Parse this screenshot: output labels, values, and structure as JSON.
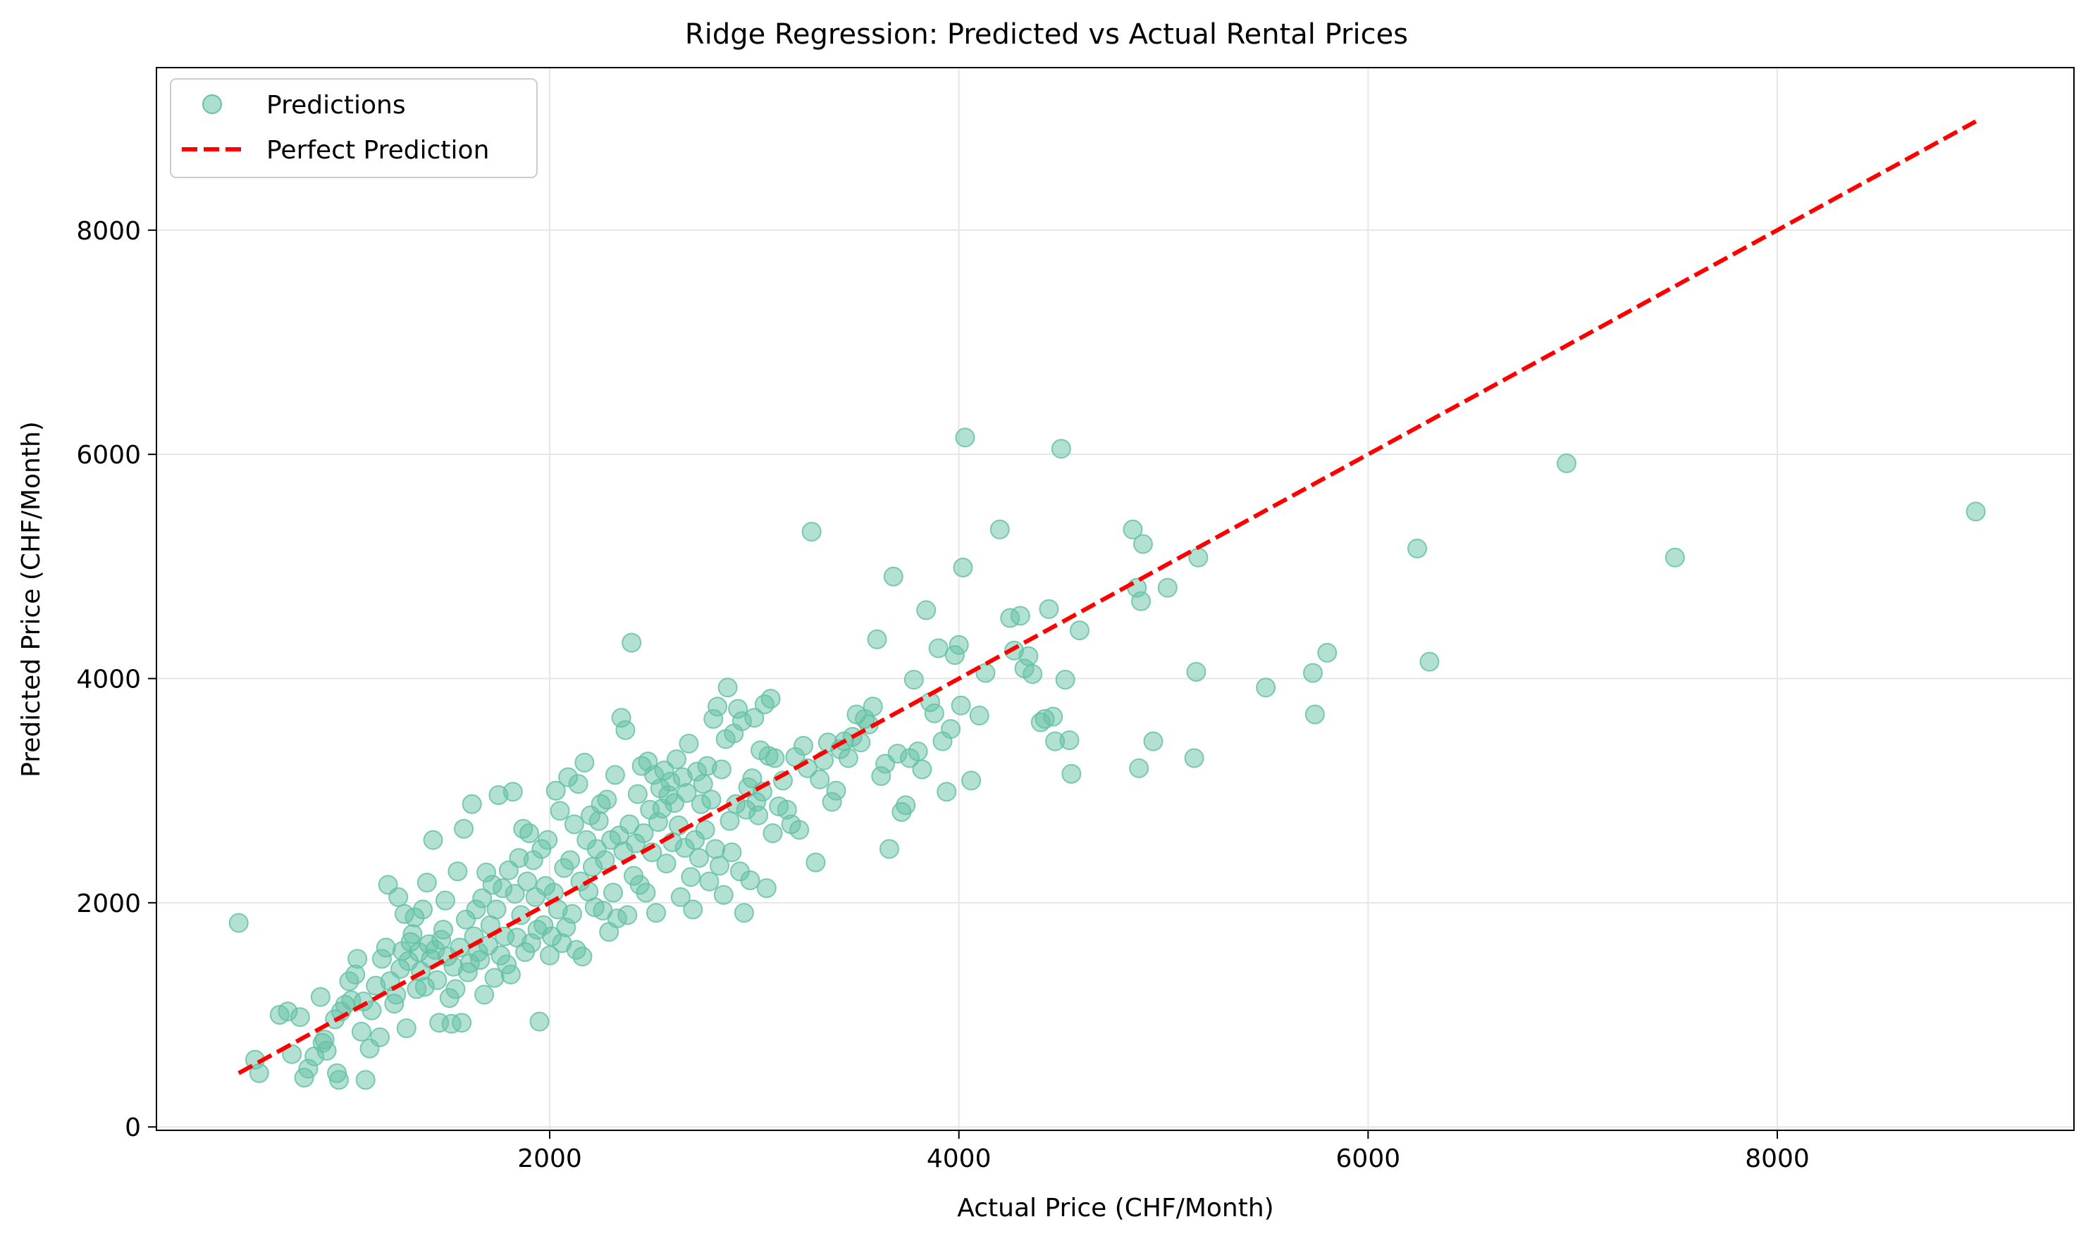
{
  "chart_data": {
    "type": "scatter",
    "title": "Ridge Regression: Predicted vs Actual Rental Prices",
    "xlabel": "Actual Price (CHF/Month)",
    "ylabel": "Predicted Price (CHF/Month)",
    "xlim": [
      78,
      9450
    ],
    "ylim": [
      -30,
      9450
    ],
    "x_ticks": [
      2000,
      4000,
      6000,
      8000
    ],
    "y_ticks": [
      0,
      2000,
      4000,
      6000,
      8000
    ],
    "grid": true,
    "legend_position": "top-left",
    "colors": {
      "points": "#66c2a5",
      "reference_line": "#ff0000",
      "grid": "#e6e6e6",
      "axes": "#000000"
    },
    "series": [
      {
        "name": "Predictions",
        "kind": "scatter",
        "points": [
          [
            480,
            1820
          ],
          [
            560,
            600
          ],
          [
            580,
            480
          ],
          [
            680,
            1000
          ],
          [
            720,
            1030
          ],
          [
            740,
            650
          ],
          [
            780,
            980
          ],
          [
            800,
            440
          ],
          [
            820,
            520
          ],
          [
            850,
            630
          ],
          [
            880,
            1160
          ],
          [
            890,
            750
          ],
          [
            900,
            780
          ],
          [
            910,
            680
          ],
          [
            950,
            960
          ],
          [
            960,
            480
          ],
          [
            970,
            420
          ],
          [
            980,
            1030
          ],
          [
            1000,
            1090
          ],
          [
            1020,
            1300
          ],
          [
            1030,
            1130
          ],
          [
            1050,
            1360
          ],
          [
            1060,
            1500
          ],
          [
            1080,
            850
          ],
          [
            1090,
            1120
          ],
          [
            1100,
            420
          ],
          [
            1120,
            700
          ],
          [
            1130,
            1040
          ],
          [
            1150,
            1260
          ],
          [
            1170,
            800
          ],
          [
            1180,
            1500
          ],
          [
            1200,
            1600
          ],
          [
            1210,
            2160
          ],
          [
            1220,
            1300
          ],
          [
            1240,
            1100
          ],
          [
            1250,
            1180
          ],
          [
            1260,
            2050
          ],
          [
            1270,
            1410
          ],
          [
            1280,
            1570
          ],
          [
            1290,
            1900
          ],
          [
            1300,
            880
          ],
          [
            1310,
            1480
          ],
          [
            1320,
            1650
          ],
          [
            1330,
            1720
          ],
          [
            1340,
            1870
          ],
          [
            1350,
            1230
          ],
          [
            1360,
            1560
          ],
          [
            1370,
            1390
          ],
          [
            1380,
            1940
          ],
          [
            1390,
            1250
          ],
          [
            1400,
            2180
          ],
          [
            1410,
            1630
          ],
          [
            1420,
            1500
          ],
          [
            1430,
            2560
          ],
          [
            1440,
            1580
          ],
          [
            1450,
            1310
          ],
          [
            1460,
            930
          ],
          [
            1470,
            1670
          ],
          [
            1480,
            1760
          ],
          [
            1490,
            2020
          ],
          [
            1500,
            1520
          ],
          [
            1510,
            1150
          ],
          [
            1520,
            920
          ],
          [
            1530,
            1430
          ],
          [
            1540,
            1230
          ],
          [
            1550,
            2280
          ],
          [
            1560,
            1600
          ],
          [
            1570,
            930
          ],
          [
            1580,
            2660
          ],
          [
            1590,
            1850
          ],
          [
            1600,
            1380
          ],
          [
            1610,
            1460
          ],
          [
            1620,
            2880
          ],
          [
            1630,
            1700
          ],
          [
            1640,
            1940
          ],
          [
            1650,
            1560
          ],
          [
            1660,
            1490
          ],
          [
            1670,
            2040
          ],
          [
            1680,
            1180
          ],
          [
            1690,
            2270
          ],
          [
            1700,
            1620
          ],
          [
            1710,
            1800
          ],
          [
            1720,
            2160
          ],
          [
            1730,
            1330
          ],
          [
            1740,
            1940
          ],
          [
            1750,
            2960
          ],
          [
            1760,
            1530
          ],
          [
            1770,
            2130
          ],
          [
            1780,
            1700
          ],
          [
            1790,
            1450
          ],
          [
            1800,
            2290
          ],
          [
            1810,
            1360
          ],
          [
            1820,
            2990
          ],
          [
            1830,
            2080
          ],
          [
            1840,
            1690
          ],
          [
            1850,
            2400
          ],
          [
            1860,
            1890
          ],
          [
            1870,
            2660
          ],
          [
            1880,
            1560
          ],
          [
            1890,
            2190
          ],
          [
            1900,
            2620
          ],
          [
            1910,
            1640
          ],
          [
            1920,
            2380
          ],
          [
            1930,
            2050
          ],
          [
            1940,
            1760
          ],
          [
            1950,
            940
          ],
          [
            1960,
            2480
          ],
          [
            1970,
            1800
          ],
          [
            1980,
            2150
          ],
          [
            1990,
            2560
          ],
          [
            2000,
            1530
          ],
          [
            2010,
            1700
          ],
          [
            2020,
            2090
          ],
          [
            2030,
            3000
          ],
          [
            2040,
            1940
          ],
          [
            2050,
            2820
          ],
          [
            2060,
            1640
          ],
          [
            2070,
            2310
          ],
          [
            2080,
            1780
          ],
          [
            2090,
            3120
          ],
          [
            2100,
            2380
          ],
          [
            2110,
            1900
          ],
          [
            2120,
            2700
          ],
          [
            2130,
            1580
          ],
          [
            2140,
            3060
          ],
          [
            2150,
            2190
          ],
          [
            2160,
            1520
          ],
          [
            2170,
            3250
          ],
          [
            2180,
            2560
          ],
          [
            2190,
            2100
          ],
          [
            2200,
            2780
          ],
          [
            2210,
            2320
          ],
          [
            2220,
            1960
          ],
          [
            2230,
            2480
          ],
          [
            2240,
            2730
          ],
          [
            2250,
            2880
          ],
          [
            2260,
            1930
          ],
          [
            2270,
            2380
          ],
          [
            2280,
            2920
          ],
          [
            2290,
            1740
          ],
          [
            2300,
            2560
          ],
          [
            2310,
            2090
          ],
          [
            2320,
            3140
          ],
          [
            2330,
            1860
          ],
          [
            2340,
            2600
          ],
          [
            2350,
            3650
          ],
          [
            2360,
            2460
          ],
          [
            2370,
            3540
          ],
          [
            2380,
            1890
          ],
          [
            2390,
            2700
          ],
          [
            2400,
            4320
          ],
          [
            2410,
            2240
          ],
          [
            2420,
            2530
          ],
          [
            2430,
            2970
          ],
          [
            2440,
            2160
          ],
          [
            2450,
            3220
          ],
          [
            2460,
            2620
          ],
          [
            2470,
            2090
          ],
          [
            2480,
            3260
          ],
          [
            2490,
            2830
          ],
          [
            2500,
            2450
          ],
          [
            2510,
            3140
          ],
          [
            2520,
            1910
          ],
          [
            2530,
            2720
          ],
          [
            2540,
            3020
          ],
          [
            2550,
            2840
          ],
          [
            2560,
            3180
          ],
          [
            2570,
            2350
          ],
          [
            2580,
            2960
          ],
          [
            2590,
            3080
          ],
          [
            2600,
            2540
          ],
          [
            2610,
            2890
          ],
          [
            2620,
            3280
          ],
          [
            2630,
            2690
          ],
          [
            2640,
            2050
          ],
          [
            2650,
            3120
          ],
          [
            2660,
            2490
          ],
          [
            2670,
            2980
          ],
          [
            2680,
            3420
          ],
          [
            2690,
            2230
          ],
          [
            2700,
            1940
          ],
          [
            2710,
            2560
          ],
          [
            2720,
            3170
          ],
          [
            2730,
            2400
          ],
          [
            2740,
            2880
          ],
          [
            2750,
            3060
          ],
          [
            2760,
            2650
          ],
          [
            2770,
            3220
          ],
          [
            2780,
            2190
          ],
          [
            2790,
            2920
          ],
          [
            2800,
            3640
          ],
          [
            2810,
            2480
          ],
          [
            2820,
            3750
          ],
          [
            2830,
            2330
          ],
          [
            2840,
            3190
          ],
          [
            2850,
            2070
          ],
          [
            2860,
            3460
          ],
          [
            2870,
            3920
          ],
          [
            2880,
            2730
          ],
          [
            2890,
            2450
          ],
          [
            2900,
            3510
          ],
          [
            2910,
            2880
          ],
          [
            2920,
            3730
          ],
          [
            2930,
            2280
          ],
          [
            2940,
            3620
          ],
          [
            2950,
            1910
          ],
          [
            2960,
            2830
          ],
          [
            2970,
            3030
          ],
          [
            2980,
            2200
          ],
          [
            2990,
            3110
          ],
          [
            3000,
            3650
          ],
          [
            3010,
            2900
          ],
          [
            3020,
            2780
          ],
          [
            3030,
            3360
          ],
          [
            3040,
            2990
          ],
          [
            3050,
            3770
          ],
          [
            3060,
            2130
          ],
          [
            3070,
            3310
          ],
          [
            3080,
            3820
          ],
          [
            3090,
            2620
          ],
          [
            3100,
            3290
          ],
          [
            3120,
            2860
          ],
          [
            3140,
            3090
          ],
          [
            3160,
            2830
          ],
          [
            3180,
            2700
          ],
          [
            3200,
            3300
          ],
          [
            3220,
            2650
          ],
          [
            3240,
            3400
          ],
          [
            3260,
            3200
          ],
          [
            3280,
            5310
          ],
          [
            3300,
            2360
          ],
          [
            3320,
            3100
          ],
          [
            3340,
            3270
          ],
          [
            3360,
            3430
          ],
          [
            3380,
            2900
          ],
          [
            3400,
            3000
          ],
          [
            3420,
            3370
          ],
          [
            3440,
            3440
          ],
          [
            3460,
            3290
          ],
          [
            3480,
            3480
          ],
          [
            3500,
            3680
          ],
          [
            3520,
            3430
          ],
          [
            3540,
            3640
          ],
          [
            3560,
            3590
          ],
          [
            3580,
            3750
          ],
          [
            3600,
            4350
          ],
          [
            3620,
            3130
          ],
          [
            3640,
            3240
          ],
          [
            3660,
            2480
          ],
          [
            3680,
            4910
          ],
          [
            3700,
            3330
          ],
          [
            3720,
            2810
          ],
          [
            3740,
            2870
          ],
          [
            3760,
            3290
          ],
          [
            3780,
            3990
          ],
          [
            3800,
            3350
          ],
          [
            3820,
            3190
          ],
          [
            3840,
            4610
          ],
          [
            3860,
            3790
          ],
          [
            3880,
            3690
          ],
          [
            3900,
            4270
          ],
          [
            3920,
            3440
          ],
          [
            3940,
            2990
          ],
          [
            3960,
            3550
          ],
          [
            3980,
            4210
          ],
          [
            4000,
            4300
          ],
          [
            4010,
            3760
          ],
          [
            4020,
            4990
          ],
          [
            4030,
            6150
          ],
          [
            4060,
            3090
          ],
          [
            4100,
            3670
          ],
          [
            4130,
            4050
          ],
          [
            4200,
            5330
          ],
          [
            4250,
            4540
          ],
          [
            4270,
            4250
          ],
          [
            4300,
            4560
          ],
          [
            4320,
            4090
          ],
          [
            4340,
            4200
          ],
          [
            4360,
            4040
          ],
          [
            4400,
            3610
          ],
          [
            4420,
            3640
          ],
          [
            4440,
            4620
          ],
          [
            4460,
            3660
          ],
          [
            4470,
            3440
          ],
          [
            4500,
            6050
          ],
          [
            4520,
            3990
          ],
          [
            4540,
            3450
          ],
          [
            4550,
            3150
          ],
          [
            4590,
            4430
          ],
          [
            4850,
            5330
          ],
          [
            4870,
            4810
          ],
          [
            4880,
            3200
          ],
          [
            4890,
            4690
          ],
          [
            4900,
            5200
          ],
          [
            4950,
            3440
          ],
          [
            5020,
            4810
          ],
          [
            5150,
            3290
          ],
          [
            5160,
            4060
          ],
          [
            5170,
            5080
          ],
          [
            5500,
            3920
          ],
          [
            5730,
            4050
          ],
          [
            5740,
            3680
          ],
          [
            5800,
            4230
          ],
          [
            6240,
            5160
          ],
          [
            6300,
            4150
          ],
          [
            6970,
            5920
          ],
          [
            7500,
            5080
          ],
          [
            8970,
            5490
          ]
        ]
      },
      {
        "name": "Perfect Prediction",
        "kind": "line",
        "style": "dashed",
        "points": [
          [
            480,
            480
          ],
          [
            8970,
            8970
          ]
        ]
      }
    ]
  }
}
